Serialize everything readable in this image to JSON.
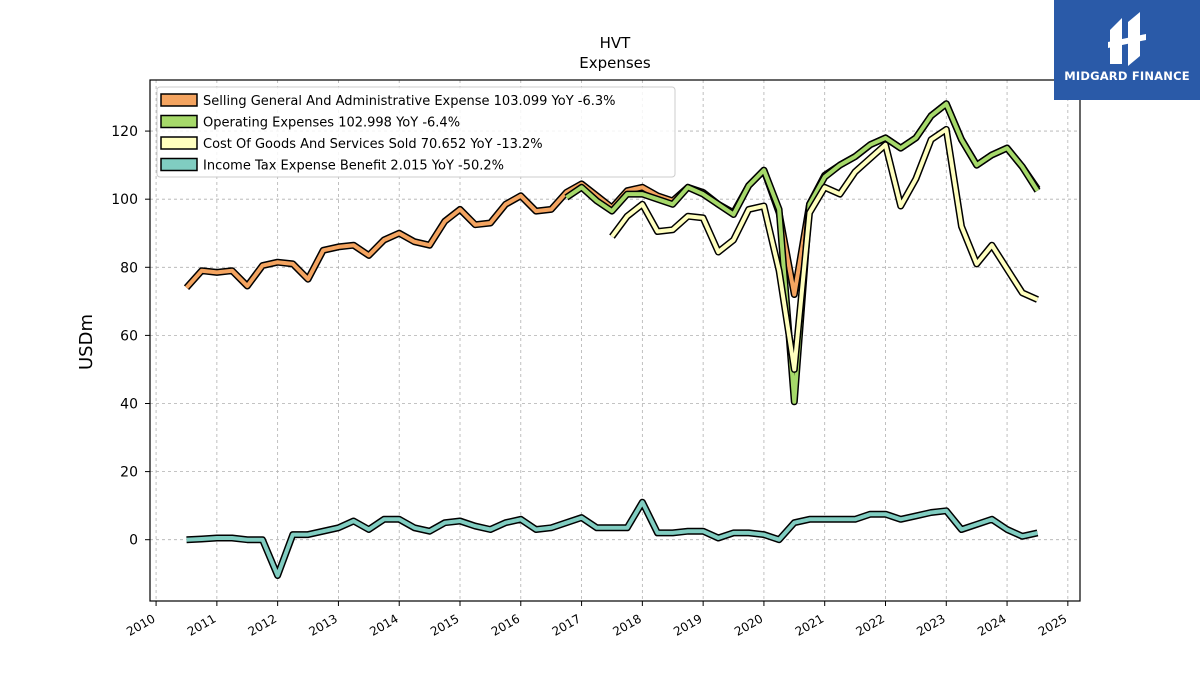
{
  "chart_data": {
    "type": "line",
    "title": "HVT",
    "subtitle": "Expenses",
    "ylabel": "USDm",
    "xlabel": "",
    "xlim": [
      2009.9,
      2025.2
    ],
    "ylim": [
      -18,
      135
    ],
    "yticks": [
      0,
      20,
      40,
      60,
      80,
      100,
      120
    ],
    "xticks": [
      "2010",
      "2011",
      "2012",
      "2013",
      "2014",
      "2015",
      "2016",
      "2017",
      "2018",
      "2019",
      "2020",
      "2021",
      "2022",
      "2023",
      "2024",
      "2025"
    ],
    "grid": true,
    "legend_position": "top-left",
    "series": [
      {
        "name": "Selling General And Administrative Expense",
        "legend_label": "Selling General And Administrative Expense  103.099 YoY -6.3%",
        "color": "#f4a460",
        "x": [
          2010.5,
          2010.75,
          2011.0,
          2011.25,
          2011.5,
          2011.75,
          2012.0,
          2012.25,
          2012.5,
          2012.75,
          2013.0,
          2013.25,
          2013.5,
          2013.75,
          2014.0,
          2014.25,
          2014.5,
          2014.75,
          2015.0,
          2015.25,
          2015.5,
          2015.75,
          2016.0,
          2016.25,
          2016.5,
          2016.75,
          2017.0,
          2017.25,
          2017.5,
          2017.75,
          2018.0,
          2018.25,
          2018.5,
          2018.75,
          2019.0,
          2019.25,
          2019.5,
          2019.75,
          2020.0,
          2020.25,
          2020.5,
          2020.75,
          2021.0,
          2021.25,
          2021.5,
          2021.75,
          2022.0,
          2022.25,
          2022.5,
          2022.75,
          2023.0,
          2023.25,
          2023.5,
          2023.75,
          2024.0,
          2024.25,
          2024.5
        ],
        "y": [
          74,
          79,
          78.5,
          79,
          74.5,
          80.5,
          81.5,
          81,
          76.5,
          85,
          86,
          86.5,
          83.5,
          88,
          90,
          87.5,
          86.5,
          93.5,
          97,
          92.5,
          93,
          98.5,
          101,
          96.5,
          97,
          102,
          104.5,
          101,
          97.5,
          102.5,
          103.5,
          101,
          99.5,
          103.5,
          102,
          98.5,
          96,
          104,
          108.5,
          96,
          72,
          98.5,
          107,
          110,
          112.5,
          116,
          118,
          115,
          118,
          124.5,
          128,
          117.5,
          110,
          113,
          115,
          109.5,
          103
        ]
      },
      {
        "name": "Operating Expenses",
        "legend_label": "Operating Expenses  102.998 YoY -6.4%",
        "color": "#a6d96a",
        "x": [
          2016.75,
          2017.0,
          2017.25,
          2017.5,
          2017.75,
          2018.0,
          2018.25,
          2018.5,
          2018.75,
          2019.0,
          2019.25,
          2019.5,
          2019.75,
          2020.0,
          2020.25,
          2020.5,
          2020.75,
          2021.0,
          2021.25,
          2021.5,
          2021.75,
          2022.0,
          2022.25,
          2022.5,
          2022.75,
          2023.0,
          2023.25,
          2023.5,
          2023.75,
          2024.0,
          2024.25,
          2024.5
        ],
        "y": [
          100.5,
          103.5,
          99.5,
          96.5,
          101.5,
          101.5,
          100,
          98.5,
          103.5,
          101.5,
          98.5,
          95.5,
          104,
          108.5,
          97,
          40.5,
          98.5,
          106.5,
          110,
          112.5,
          116,
          118,
          115,
          118,
          124.5,
          128,
          117.5,
          110,
          113,
          115,
          109.5,
          102.5
        ]
      },
      {
        "name": "Cost Of Goods And Services Sold",
        "legend_label": "Cost Of Goods And Services Sold  70.652 YoY -13.2%",
        "color": "#ffffbf",
        "x": [
          2017.5,
          2017.75,
          2018.0,
          2018.25,
          2018.5,
          2018.75,
          2019.0,
          2019.25,
          2019.5,
          2019.75,
          2020.0,
          2020.25,
          2020.5,
          2020.75,
          2021.0,
          2021.25,
          2021.5,
          2021.75,
          2022.0,
          2022.25,
          2022.5,
          2022.75,
          2023.0,
          2023.25,
          2023.5,
          2023.75,
          2024.0,
          2024.25,
          2024.5
        ],
        "y": [
          89,
          95,
          98.5,
          90.5,
          91,
          95,
          94.5,
          84.5,
          88,
          97,
          98,
          79,
          50,
          96,
          103.5,
          101.5,
          108,
          112,
          116,
          98,
          106,
          117.5,
          120.5,
          92,
          81,
          86.5,
          79.5,
          72.5,
          70.5
        ]
      },
      {
        "name": "Income Tax Expense Benefit",
        "legend_label": "Income Tax Expense Benefit  2.015 YoY -50.2%",
        "color": "#80cdc1",
        "x": [
          2010.5,
          2010.75,
          2011.0,
          2011.25,
          2011.5,
          2011.75,
          2012.0,
          2012.25,
          2012.5,
          2012.75,
          2013.0,
          2013.25,
          2013.5,
          2013.75,
          2014.0,
          2014.25,
          2014.5,
          2014.75,
          2015.0,
          2015.25,
          2015.5,
          2015.75,
          2016.0,
          2016.25,
          2016.5,
          2016.75,
          2017.0,
          2017.25,
          2017.5,
          2017.75,
          2018.0,
          2018.25,
          2018.5,
          2018.75,
          2019.0,
          2019.25,
          2019.5,
          2019.75,
          2020.0,
          2020.25,
          2020.5,
          2020.75,
          2021.0,
          2021.25,
          2021.5,
          2021.75,
          2022.0,
          2022.25,
          2022.5,
          2022.75,
          2023.0,
          2023.25,
          2023.5,
          2023.75,
          2024.0,
          2024.25,
          2024.5
        ],
        "y": [
          0,
          0.2,
          0.5,
          0.5,
          0,
          0,
          -10.5,
          1.5,
          1.5,
          2.5,
          3.5,
          5.5,
          3,
          6,
          6,
          3.5,
          2.5,
          5,
          5.5,
          4,
          3,
          5,
          6,
          3,
          3.5,
          5,
          6.5,
          3.5,
          3.5,
          3.5,
          11,
          2,
          2,
          2.5,
          2.5,
          0.5,
          2,
          2,
          1.5,
          0,
          5,
          6,
          6,
          6,
          6,
          7.5,
          7.5,
          6,
          7,
          8,
          8.5,
          3,
          4.5,
          6,
          3,
          1,
          2
        ]
      }
    ]
  },
  "logo": {
    "text": "MIDGARD FINANCE"
  }
}
